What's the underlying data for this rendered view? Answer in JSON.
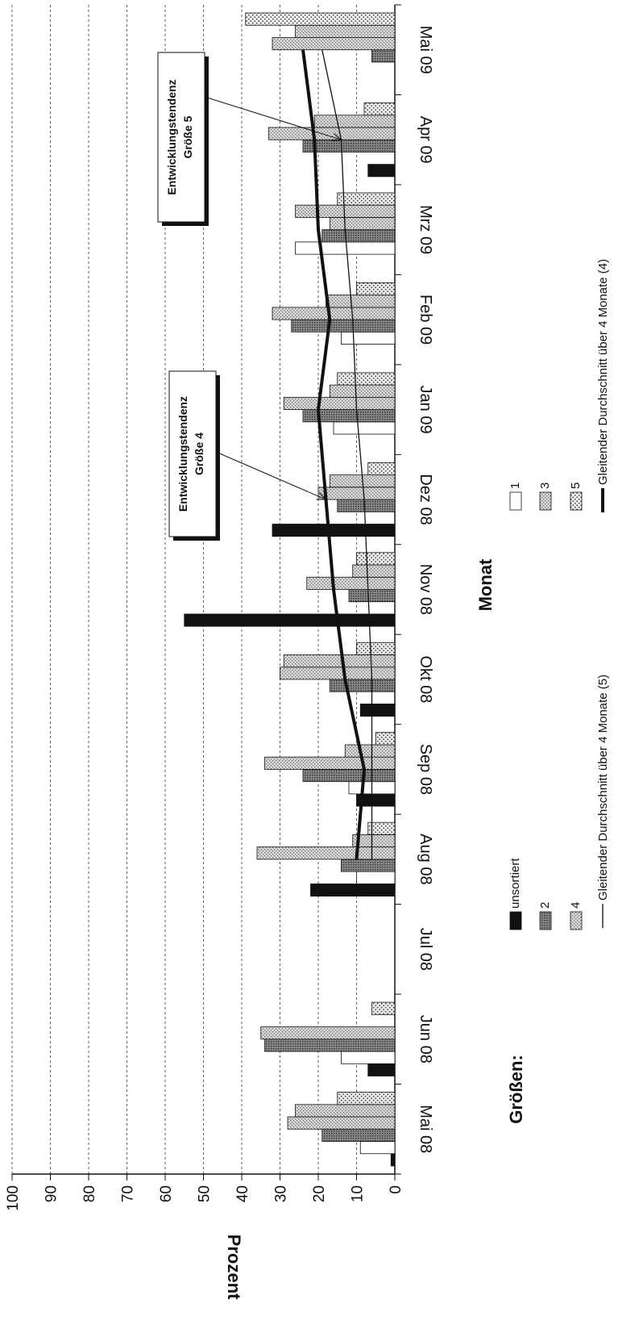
{
  "chart_data": {
    "type": "bar",
    "title": "",
    "xlabel": "Monat",
    "ylabel": "Prozent",
    "ylim": [
      0,
      100
    ],
    "yticks": [
      0,
      10,
      20,
      30,
      40,
      50,
      60,
      70,
      80,
      90,
      100
    ],
    "grid": true,
    "orientation": "rotated",
    "categories": [
      "Mai 08",
      "Jun 08",
      "Jul 08",
      "Aug 08",
      "Sep 08",
      "Okt 08",
      "Nov 08",
      "Dez 08",
      "Jan 09",
      "Feb 09",
      "Mrz 09",
      "Apr 09",
      "Mai 09"
    ],
    "series": [
      {
        "name": "unsortiert",
        "pattern": "solid",
        "values": [
          1,
          7,
          0,
          22,
          10,
          9,
          55,
          32,
          0,
          0,
          0,
          7,
          0
        ]
      },
      {
        "name": "1",
        "pattern": "white",
        "values": [
          9,
          14,
          0,
          10,
          12,
          0,
          0,
          0,
          16,
          14,
          26,
          0,
          0
        ]
      },
      {
        "name": "2",
        "pattern": "dense",
        "values": [
          19,
          34,
          0,
          14,
          24,
          17,
          12,
          15,
          24,
          27,
          19,
          24,
          6
        ]
      },
      {
        "name": "3",
        "pattern": "light",
        "values": [
          28,
          35,
          0,
          36,
          34,
          30,
          23,
          20,
          29,
          32,
          17,
          33,
          32
        ]
      },
      {
        "name": "4",
        "pattern": "light",
        "values": [
          26,
          0,
          0,
          11,
          13,
          29,
          11,
          17,
          17,
          18,
          26,
          21,
          26
        ]
      },
      {
        "name": "5",
        "pattern": "dotted",
        "values": [
          15,
          6,
          0,
          7,
          5,
          10,
          10,
          7,
          15,
          10,
          15,
          8,
          39
        ]
      }
    ],
    "lines": [
      {
        "name": "Gleitender Durchschnitt über 4 Monate (5)",
        "style": "thin",
        "values": [
          null,
          null,
          null,
          6,
          6,
          6,
          7,
          8,
          10,
          11,
          13,
          14,
          19
        ]
      },
      {
        "name": "Gleitender Durchschnitt über 4 Monate (4)",
        "style": "thick",
        "values": [
          null,
          null,
          null,
          10,
          8,
          13,
          16,
          18,
          20,
          17,
          20,
          21,
          24
        ]
      }
    ],
    "legend": {
      "title": "Größen:",
      "placement": "bottom",
      "items": [
        "unsortiert",
        "1",
        "2",
        "3",
        "4",
        "5",
        "Gleitender Durchschnitt über 4 Monate (5)",
        "Gleitender Durchschnitt über 4 Monate (4)"
      ]
    },
    "annotations": [
      {
        "line1": "Entwicklungstendenz",
        "line2": "Größe 4",
        "target_series": "Gleitender Durchschnitt über 4 Monate (4)",
        "target_category": "Dez 08"
      },
      {
        "line1": "Entwicklungstendenz",
        "line2": "Größe 5",
        "target_series": "Gleitender Durchschnitt über 4 Monate (5)",
        "target_category": "Apr 09"
      }
    ]
  }
}
